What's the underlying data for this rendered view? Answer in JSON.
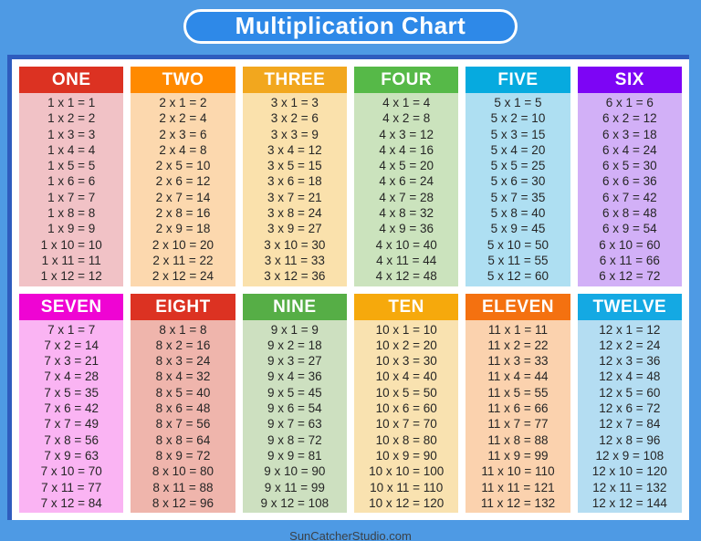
{
  "page": {
    "title": "Multiplication Chart",
    "title_bg": "#2e89e8",
    "page_bg": "#4e9ae4",
    "card_bg": "#ffffff",
    "card_accent_border": "#2e5cbe",
    "footer": "SunCatcherStudio.com"
  },
  "tables": [
    {
      "name": "ONE",
      "header_color": "#dc3222",
      "body_color": "#f1c2c6",
      "facts": [
        "1 x 1 = 1",
        "1 x 2 = 2",
        "1 x 3 = 3",
        "1 x 4 = 4",
        "1 x 5 = 5",
        "1 x 6 = 6",
        "1 x 7 = 7",
        "1 x 8 = 8",
        "1 x 9 = 9",
        "1 x 10 = 10",
        "1 x 11 = 11",
        "1 x 12 = 12"
      ]
    },
    {
      "name": "TWO",
      "header_color": "#ff8a00",
      "body_color": "#fcd8ae",
      "facts": [
        "2 x 1 = 2",
        "2 x 2 = 4",
        "2 x 3 = 6",
        "2 x 4 = 8",
        "2 x 5 = 10",
        "2 x 6 = 12",
        "2 x 7 = 14",
        "2 x 8 = 16",
        "2 x 9 = 18",
        "2 x 10 = 20",
        "2 x 11 = 22",
        "2 x 12 = 24"
      ]
    },
    {
      "name": "THREE",
      "header_color": "#f2a71e",
      "body_color": "#fae1ac",
      "facts": [
        "3 x 1 = 3",
        "3 x 2 = 6",
        "3 x 3 = 9",
        "3 x 4 = 12",
        "3 x 5 = 15",
        "3 x 6 = 18",
        "3 x 7 = 21",
        "3 x 8 = 24",
        "3 x 9 = 27",
        "3 x 10 = 30",
        "3 x 11 = 33",
        "3 x 12 = 36"
      ]
    },
    {
      "name": "FOUR",
      "header_color": "#56b948",
      "body_color": "#cbe3bd",
      "facts": [
        "4 x 1 = 4",
        "4 x 2 = 8",
        "4 x 3 = 12",
        "4 x 4 = 16",
        "4 x 5 = 20",
        "4 x 6 = 24",
        "4 x 7 = 28",
        "4 x 8 = 32",
        "4 x 9 = 36",
        "4 x 10 = 40",
        "4 x 11 = 44",
        "4 x 12 = 48"
      ]
    },
    {
      "name": "FIVE",
      "header_color": "#06aadf",
      "body_color": "#aedff2",
      "facts": [
        "5 x 1 = 5",
        "5 x 2 = 10",
        "5 x 3 = 15",
        "5 x 4 = 20",
        "5 x 5 = 25",
        "5 x 6 = 30",
        "5 x 7 = 35",
        "5 x 8 = 40",
        "5 x 9 = 45",
        "5 x 10 = 50",
        "5 x 11 = 55",
        "5 x 12 = 60"
      ]
    },
    {
      "name": "SIX",
      "header_color": "#7d05f5",
      "body_color": "#d2b0f7",
      "facts": [
        "6 x 1 = 6",
        "6 x 2 = 12",
        "6 x 3 = 18",
        "6 x 4 = 24",
        "6 x 5 = 30",
        "6 x 6 = 36",
        "6 x 7 = 42",
        "6 x 8 = 48",
        "6 x 9 = 54",
        "6 x 10 = 60",
        "6 x 11 = 66",
        "6 x 12 = 72"
      ]
    },
    {
      "name": "SEVEN",
      "header_color": "#ef04d3",
      "body_color": "#fab4f3",
      "facts": [
        "7 x 1 = 7",
        "7 x 2 = 14",
        "7 x 3 = 21",
        "7 x 4 = 28",
        "7 x 5 = 35",
        "7 x 6 = 42",
        "7 x 7 = 49",
        "7 x 8 = 56",
        "7 x 9 = 63",
        "7 x 10 = 70",
        "7 x 11 = 77",
        "7 x 12 = 84"
      ]
    },
    {
      "name": "EIGHT",
      "header_color": "#dc3222",
      "body_color": "#efb5ac",
      "facts": [
        "8 x 1 = 8",
        "8 x 2 = 16",
        "8 x 3 = 24",
        "8 x 4 = 32",
        "8 x 5 = 40",
        "8 x 6 = 48",
        "8 x 7 = 56",
        "8 x 8 = 64",
        "8 x 9 = 72",
        "8 x 10 = 80",
        "8 x 11 = 88",
        "8 x 12 = 96"
      ]
    },
    {
      "name": "NINE",
      "header_color": "#56ae46",
      "body_color": "#cde0c0",
      "facts": [
        "9 x 1 = 9",
        "9 x 2 = 18",
        "9 x 3 = 27",
        "9 x 4 = 36",
        "9 x 5 = 45",
        "9 x 6 = 54",
        "9 x 7 = 63",
        "9 x 8 = 72",
        "9 x 9 = 81",
        "9 x 10 = 90",
        "9 x 11 = 99",
        "9 x 12 = 108"
      ]
    },
    {
      "name": "TEN",
      "header_color": "#f6a90c",
      "body_color": "#f9e2b0",
      "facts": [
        "10 x 1 = 10",
        "10 x 2 = 20",
        "10 x 3 = 30",
        "10 x 4 = 40",
        "10 x 5 = 50",
        "10 x 6 = 60",
        "10 x 7 = 70",
        "10 x 8 = 80",
        "10 x 9 = 90",
        "10 x 10 = 100",
        "10 x 11 = 110",
        "10 x 12 = 120"
      ]
    },
    {
      "name": "ELEVEN",
      "header_color": "#f47110",
      "body_color": "#fbd2ae",
      "facts": [
        "11 x 1 = 11",
        "11 x 2 = 22",
        "11 x 3 = 33",
        "11 x 4 = 44",
        "11 x 5 = 55",
        "11 x 6 = 66",
        "11 x 7 = 77",
        "11 x 8 = 88",
        "11 x 9 = 99",
        "11 x 10 = 110",
        "11 x 11 = 121",
        "11 x 12 = 132"
      ]
    },
    {
      "name": "TWELVE",
      "header_color": "#14a9e3",
      "body_color": "#b4ddf2",
      "facts": [
        "12 x 1 = 12",
        "12 x 2 = 24",
        "12 x 3 = 36",
        "12 x 4 = 48",
        "12 x 5 = 60",
        "12 x 6 = 72",
        "12 x 7 = 84",
        "12 x 8 = 96",
        "12 x 9 = 108",
        "12 x 10 = 120",
        "12 x 11 = 132",
        "12 x 12 = 144"
      ]
    }
  ]
}
